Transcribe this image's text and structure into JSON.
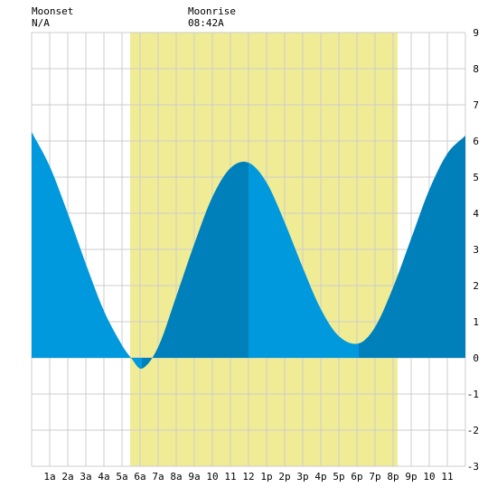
{
  "moon": {
    "moonset_label": "Moonset",
    "moonset_time": "N/A",
    "moonrise_label": "Moonrise",
    "moonrise_time": "08:42A"
  },
  "colors": {
    "daylight": "#f0ec96",
    "tide_fill": "#0099dd",
    "tide_fill_alt": "#0080bb",
    "grid": "#cccccc"
  },
  "chart_data": {
    "type": "area",
    "title": "",
    "xlabel": "",
    "ylabel": "",
    "xlim": [
      0,
      24
    ],
    "ylim": [
      -3,
      9
    ],
    "grid": true,
    "x_ticks": [
      "1a",
      "2a",
      "3a",
      "4a",
      "5a",
      "6a",
      "7a",
      "8a",
      "9a",
      "10",
      "11",
      "12",
      "1p",
      "2p",
      "3p",
      "4p",
      "5p",
      "6p",
      "7p",
      "8p",
      "9p",
      "10",
      "11"
    ],
    "y_ticks": [
      -3,
      -2,
      -1,
      0,
      1,
      2,
      3,
      4,
      5,
      6,
      7,
      8,
      9
    ],
    "daylight_hours": [
      5.45,
      20.25
    ],
    "tide_extremes": [
      {
        "hour": 6.1,
        "height": -0.3
      },
      {
        "hour": 12.0,
        "height": 5.4
      },
      {
        "hour": 18.1,
        "height": 0.4
      }
    ],
    "series": [
      {
        "x": [
          0,
          1,
          2,
          3,
          4,
          5,
          5.5,
          6.1,
          7,
          8,
          9,
          10,
          11,
          12,
          13,
          14,
          15,
          16,
          17,
          18.1,
          19,
          20,
          21,
          22,
          23,
          24
        ],
        "values": [
          6.25,
          5.3,
          4.0,
          2.6,
          1.3,
          0.35,
          0.0,
          -0.3,
          0.3,
          1.7,
          3.15,
          4.45,
          5.25,
          5.4,
          4.85,
          3.75,
          2.5,
          1.35,
          0.6,
          0.4,
          0.85,
          1.95,
          3.3,
          4.65,
          5.65,
          6.15
        ]
      }
    ]
  }
}
